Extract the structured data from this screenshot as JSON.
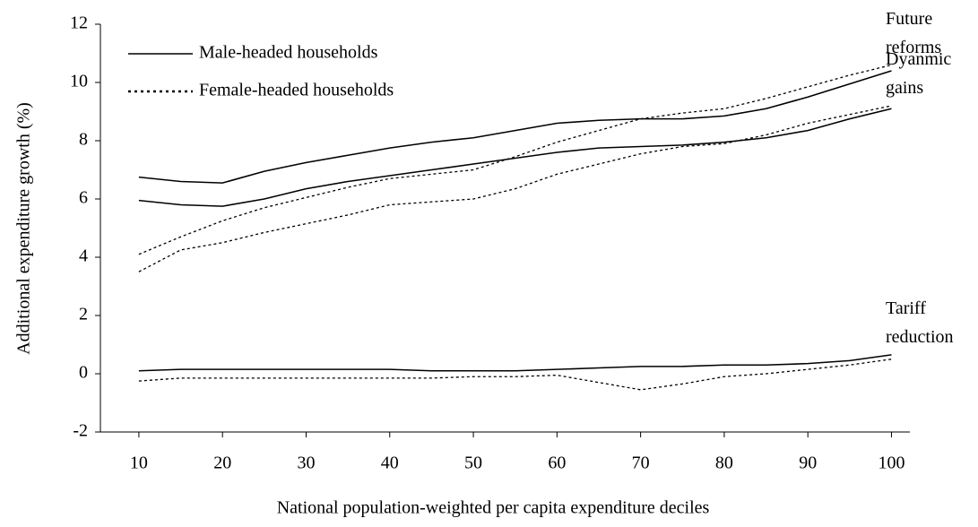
{
  "chart_data": {
    "type": "line",
    "y_label": "Additional expenditure growth (%)",
    "x_label": "National population-weighted per capita expenditure deciles",
    "x": [
      10,
      15,
      20,
      25,
      30,
      35,
      40,
      45,
      50,
      55,
      60,
      65,
      70,
      75,
      80,
      85,
      90,
      95,
      100
    ],
    "xlim": [
      5.4,
      102.2
    ],
    "xticks": [
      10,
      20,
      30,
      40,
      50,
      60,
      70,
      80,
      90,
      100
    ],
    "ylim": [
      -2,
      12
    ],
    "yticks": [
      -2,
      0,
      2,
      4,
      6,
      8,
      10,
      12
    ],
    "groups": [
      "Future reforms",
      "Dyanmic gains",
      "Tariff reduction"
    ],
    "series": [
      {
        "name": "Male-headed households",
        "group": 0,
        "color": "#000000",
        "dashed": false,
        "values": [
          6.75,
          6.6,
          6.55,
          6.95,
          7.25,
          7.5,
          7.75,
          7.95,
          8.1,
          8.35,
          8.6,
          8.7,
          8.75,
          8.75,
          8.85,
          9.1,
          9.5,
          9.95,
          10.4
        ]
      },
      {
        "name": "Female-headed households",
        "group": 0,
        "color": "#000000",
        "dashed": true,
        "values": [
          4.1,
          4.7,
          5.25,
          5.7,
          6.05,
          6.4,
          6.7,
          6.85,
          7.0,
          7.45,
          7.95,
          8.35,
          8.75,
          8.95,
          9.1,
          9.45,
          9.85,
          10.25,
          10.6
        ]
      },
      {
        "name": "Male-headed households",
        "group": 1,
        "color": "#000000",
        "dashed": false,
        "values": [
          5.95,
          5.8,
          5.75,
          6.0,
          6.35,
          6.6,
          6.8,
          7.0,
          7.2,
          7.4,
          7.6,
          7.75,
          7.8,
          7.85,
          7.95,
          8.1,
          8.35,
          8.75,
          9.1
        ]
      },
      {
        "name": "Female-headed households",
        "group": 1,
        "color": "#000000",
        "dashed": true,
        "values": [
          3.5,
          4.25,
          4.5,
          4.85,
          5.15,
          5.45,
          5.8,
          5.9,
          6.0,
          6.35,
          6.85,
          7.2,
          7.55,
          7.8,
          7.9,
          8.2,
          8.6,
          8.9,
          9.2
        ]
      },
      {
        "name": "Male-headed households",
        "group": 2,
        "color": "#000000",
        "dashed": false,
        "values": [
          0.1,
          0.15,
          0.15,
          0.15,
          0.15,
          0.15,
          0.15,
          0.1,
          0.1,
          0.1,
          0.15,
          0.2,
          0.25,
          0.25,
          0.3,
          0.3,
          0.35,
          0.45,
          0.65
        ]
      },
      {
        "name": "Female-headed households",
        "group": 2,
        "color": "#000000",
        "dashed": true,
        "values": [
          -0.25,
          -0.15,
          -0.15,
          -0.15,
          -0.15,
          -0.15,
          -0.15,
          -0.15,
          -0.1,
          -0.1,
          -0.05,
          -0.3,
          -0.55,
          -0.35,
          -0.1,
          0.0,
          0.15,
          0.3,
          0.5
        ]
      }
    ]
  }
}
